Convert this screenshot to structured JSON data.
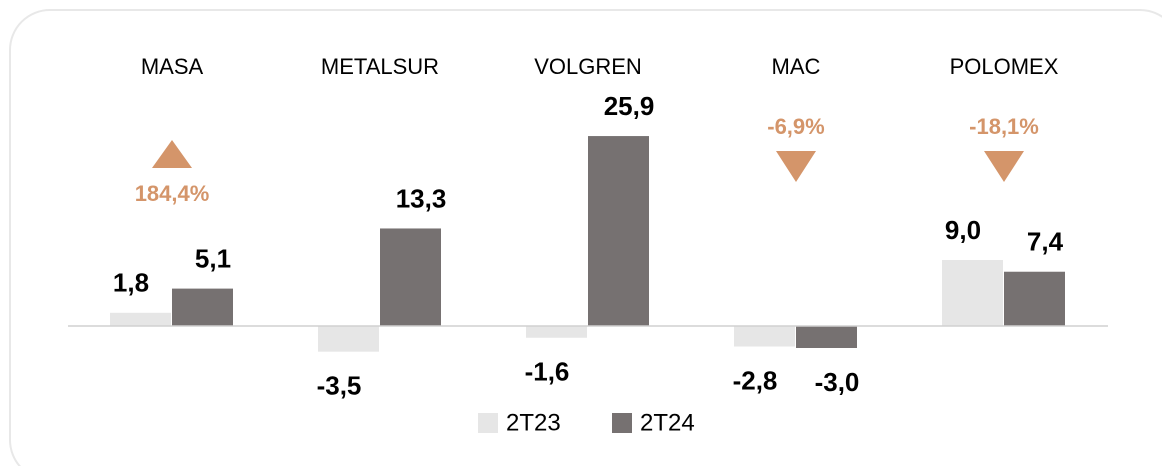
{
  "chart_data": {
    "type": "bar",
    "categories": [
      "MASA",
      "METALSUR",
      "VOLGREN",
      "MAC",
      "POLOMEX"
    ],
    "series": [
      {
        "name": "2T23",
        "color": "#e6e6e6",
        "values": [
          1.8,
          -3.5,
          -1.6,
          -2.8,
          9.0
        ],
        "value_labels": [
          "1,8",
          "-3,5",
          "-1,6",
          "-2,8",
          "9,0"
        ]
      },
      {
        "name": "2T24",
        "color": "#767171",
        "values": [
          5.1,
          13.3,
          25.9,
          -3.0,
          7.4
        ],
        "value_labels": [
          "5,1",
          "13,3",
          "25,9",
          "-3,0",
          "7,4"
        ]
      }
    ],
    "ylim": [
      -6,
      30
    ],
    "annotations": [
      {
        "category": "MASA",
        "text": "184,4%",
        "direction": "up",
        "color": "#d4956a"
      },
      {
        "category": "MAC",
        "text": "-6,9%",
        "direction": "down",
        "color": "#d4956a"
      },
      {
        "category": "POLOMEX",
        "text": "-18,1%",
        "direction": "down",
        "color": "#d4956a"
      }
    ],
    "legend": "bottom"
  }
}
